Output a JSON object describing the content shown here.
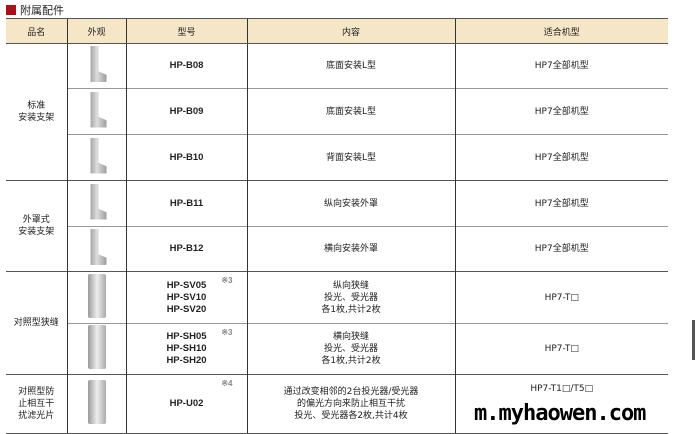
{
  "title": "附属配件",
  "headers": [
    "品名",
    "外观",
    "型号",
    "内容",
    "适合机型"
  ],
  "groups": [
    {
      "name": "标准\n安装支架"
    },
    {
      "name": "外罩式\n安装支架"
    },
    {
      "name": "对照型狭缝"
    },
    {
      "name": "对照型防\n止相互干\n扰滤光片"
    }
  ],
  "rows": [
    {
      "model": "HP-B08",
      "content": "底面安装L型",
      "fit": "HP7全部机型"
    },
    {
      "model": "HP-B09",
      "content": "底面安装L型",
      "fit": "HP7全部机型"
    },
    {
      "model": "HP-B10",
      "content": "背面安装L型",
      "fit": "HP7全部机型"
    },
    {
      "model": "HP-B11",
      "content": "纵向安装外罩",
      "fit": "HP7全部机型"
    },
    {
      "model": "HP-B12",
      "content": "横向安装外罩",
      "fit": "HP7全部机型"
    },
    {
      "model": "HP-SV05\nHP-SV10\nHP-SV20",
      "note": "※3",
      "content": "纵向狭缝\n投光、受光器\n各1枚,共计2枚",
      "fit": "HP7-T□"
    },
    {
      "model": "HP-SH05\nHP-SH10\nHP-SH20",
      "note": "※3",
      "content": "横向狭缝\n投光、受光器\n各1枚,共计2枚",
      "fit": "HP7-T□"
    },
    {
      "model": "HP-U02",
      "note": "※4",
      "content": "通过改变相邻的2台投光器/受光器\n的偏光方向来防止相互干扰\n投光、受光器各2枚,共计4枚",
      "fit": "HP7-T1□/T5□"
    }
  ],
  "watermark": "m.myhaowen.com"
}
